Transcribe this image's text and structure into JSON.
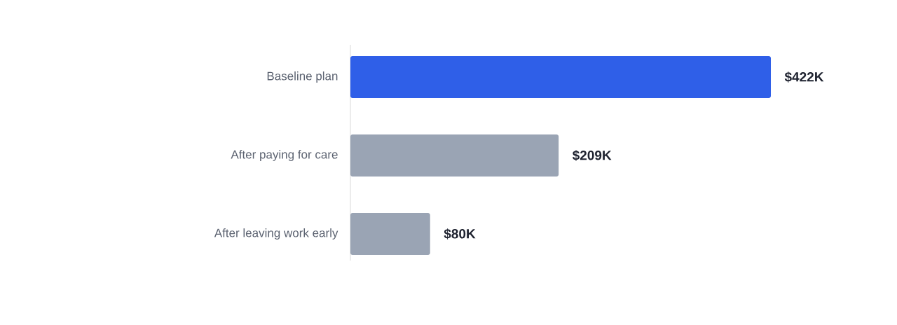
{
  "chart_data": {
    "type": "bar",
    "orientation": "horizontal",
    "categories": [
      "Baseline plan",
      "After paying for care",
      "After leaving work early"
    ],
    "values": [
      422,
      209,
      80
    ],
    "colors": [
      "#2f5fe8",
      "#9aa4b4",
      "#9aa4b4"
    ],
    "value_labels": [
      "$422K",
      "$209K",
      "$80K"
    ]
  }
}
